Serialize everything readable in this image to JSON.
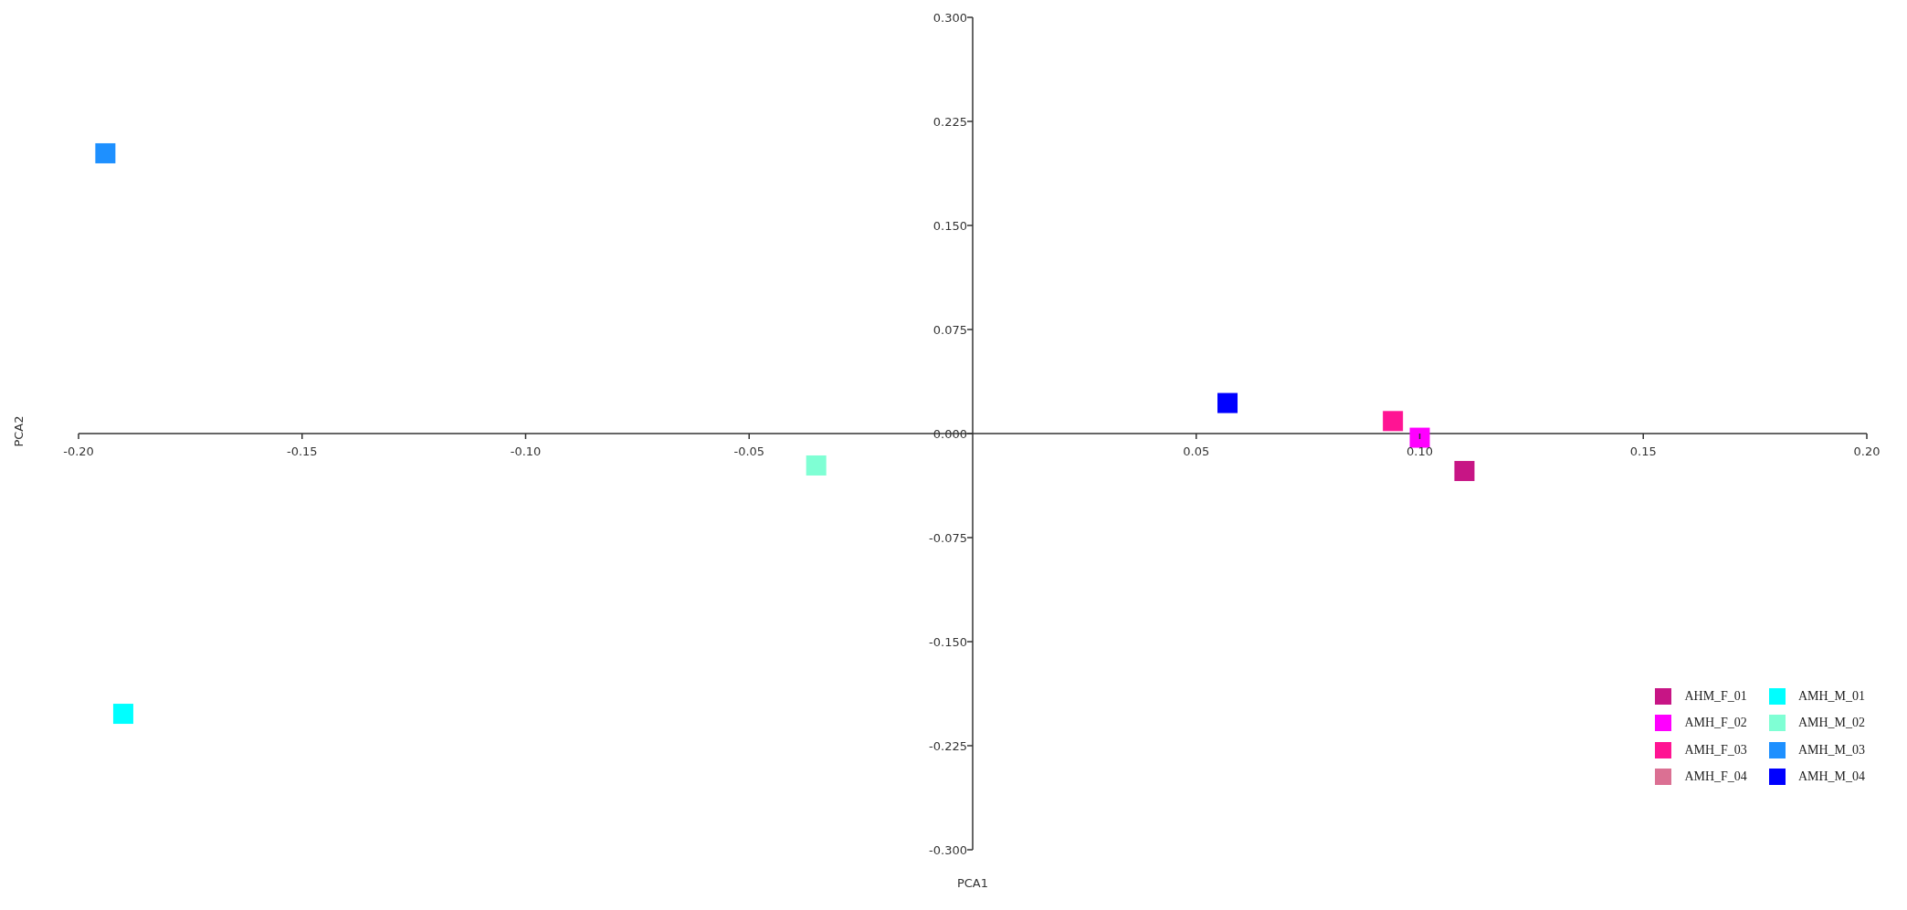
{
  "chart_data": {
    "type": "scatter",
    "xlabel": "PCA1",
    "ylabel": "PCA2",
    "xlim": [
      -0.2,
      0.2
    ],
    "ylim": [
      -0.3,
      0.3
    ],
    "xticks": [
      {
        "value": -0.2,
        "label": "-0.20"
      },
      {
        "value": -0.15,
        "label": "-0.15"
      },
      {
        "value": -0.1,
        "label": "-0.10"
      },
      {
        "value": -0.05,
        "label": "-0.05"
      },
      {
        "value": 0.05,
        "label": "0.05"
      },
      {
        "value": 0.1,
        "label": "0.10"
      },
      {
        "value": 0.15,
        "label": "0.15"
      },
      {
        "value": 0.2,
        "label": "0.20"
      }
    ],
    "yticks": [
      {
        "value": 0.3,
        "label": "0.300"
      },
      {
        "value": 0.225,
        "label": "0.225"
      },
      {
        "value": 0.15,
        "label": "0.150"
      },
      {
        "value": 0.075,
        "label": "0.075"
      },
      {
        "value": 0,
        "label": "0.000"
      },
      {
        "value": -0.075,
        "label": "-0.075"
      },
      {
        "value": -0.15,
        "label": "-0.150"
      },
      {
        "value": -0.225,
        "label": "-0.225"
      },
      {
        "value": -0.3,
        "label": "-0.300"
      }
    ],
    "marker": "square",
    "legend": "bottom right",
    "grid": false,
    "series": [
      {
        "name": "AHM_F_01",
        "color": "#c71585",
        "x": [
          0.11
        ],
        "values": [
          -0.027
        ]
      },
      {
        "name": "AMH_F_02",
        "color": "#ff00ff",
        "x": [
          0.1
        ],
        "values": [
          -0.003
        ]
      },
      {
        "name": "AMH_F_03",
        "color": "#ff1493",
        "x": [
          0.094
        ],
        "values": [
          0.009
        ]
      },
      {
        "name": "AMH_F_04",
        "color": "#db7093",
        "x": [
          null
        ],
        "values": [
          null
        ]
      },
      {
        "name": "AMH_M_01",
        "color": "#00ffff",
        "x": [
          -0.19
        ],
        "values": [
          -0.202
        ]
      },
      {
        "name": "AMH_M_02",
        "color": "#7fffd4",
        "x": [
          -0.035
        ],
        "values": [
          -0.023
        ]
      },
      {
        "name": "AMH_M_03",
        "color": "#1e90ff",
        "x": [
          -0.194
        ],
        "values": [
          0.202
        ]
      },
      {
        "name": "AMH_M_04",
        "color": "#0000ff",
        "x": [
          0.057
        ],
        "values": [
          0.022
        ]
      }
    ]
  }
}
